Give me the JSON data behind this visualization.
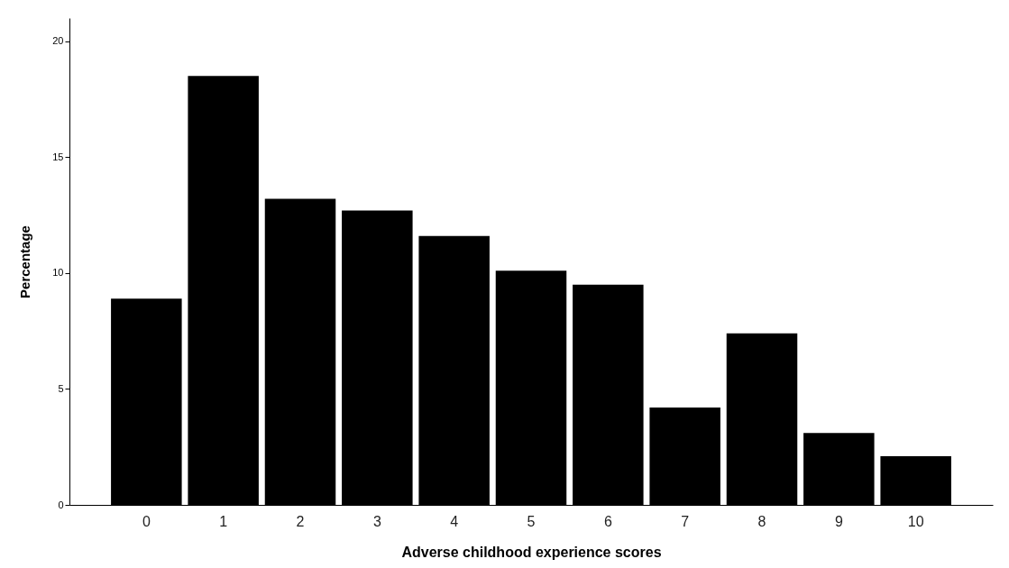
{
  "chart_data": {
    "type": "bar",
    "xlabel": "Adverse childhood experience scores",
    "ylabel": "Percentage",
    "categories": [
      "0",
      "1",
      "2",
      "3",
      "4",
      "5",
      "6",
      "7",
      "8",
      "9",
      "10"
    ],
    "values": [
      8.9,
      18.5,
      13.2,
      12.7,
      11.6,
      10.1,
      9.5,
      4.2,
      7.4,
      3.1,
      2.1
    ],
    "color": "#000000",
    "ylim": [
      0,
      21
    ],
    "yticks": [
      0,
      5,
      10,
      15,
      20
    ],
    "grid": false
  }
}
